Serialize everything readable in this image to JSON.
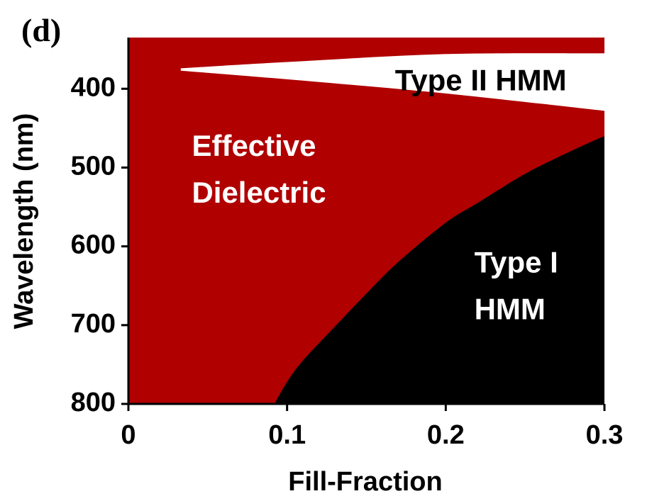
{
  "panel_label": "(d)",
  "colors": {
    "effective_dielectric": "#b00000",
    "type_i_hmm": "#000000",
    "type_ii_hmm": "#ffffff",
    "axis": "#000000"
  },
  "chart_data": {
    "type": "area",
    "title": "",
    "xlabel": "Fill-Fraction",
    "ylabel": "Wavelength (nm)",
    "xlim": [
      0,
      0.3
    ],
    "ylim": [
      335,
      800
    ],
    "y_inverted": true,
    "x_ticks": [
      0,
      0.1,
      0.2,
      0.3
    ],
    "x_tick_labels": [
      "0",
      "0.1",
      "0.2",
      "0.3"
    ],
    "y_ticks": [
      400,
      500,
      600,
      700,
      800
    ],
    "y_tick_labels": [
      "400",
      "500",
      "600",
      "700",
      "800"
    ],
    "grid": false,
    "regions": [
      {
        "name": "Effective Dielectric",
        "color": "#b00000",
        "label_lines": [
          "Effective",
          "Dielectric"
        ],
        "label_color": "#ffffff",
        "label_anchor": [
          0.04,
          505
        ],
        "fill": "background"
      },
      {
        "name": "Type II HMM",
        "color": "#ffffff",
        "label_lines": [
          "Type II  HMM"
        ],
        "label_color": "#000000",
        "label_anchor": [
          0.168,
          392
        ],
        "upper_boundary": [
          [
            0.033,
            374
          ],
          [
            0.1,
            366
          ],
          [
            0.2,
            356
          ],
          [
            0.3,
            355
          ]
        ],
        "lower_boundary": [
          [
            0.033,
            377
          ],
          [
            0.1,
            388
          ],
          [
            0.2,
            406
          ],
          [
            0.3,
            428
          ]
        ]
      },
      {
        "name": "Type I HMM",
        "color": "#000000",
        "label_lines": [
          "Type I",
          "HMM"
        ],
        "label_color": "#ffffff",
        "label_anchor": [
          0.218,
          653
        ],
        "boundary": [
          [
            0.092,
            800
          ],
          [
            0.1,
            772
          ],
          [
            0.11,
            745
          ],
          [
            0.13,
            702
          ],
          [
            0.15,
            660
          ],
          [
            0.17,
            620
          ],
          [
            0.2,
            570
          ],
          [
            0.22,
            545
          ],
          [
            0.25,
            508
          ],
          [
            0.28,
            478
          ],
          [
            0.3,
            460
          ]
        ]
      }
    ]
  }
}
